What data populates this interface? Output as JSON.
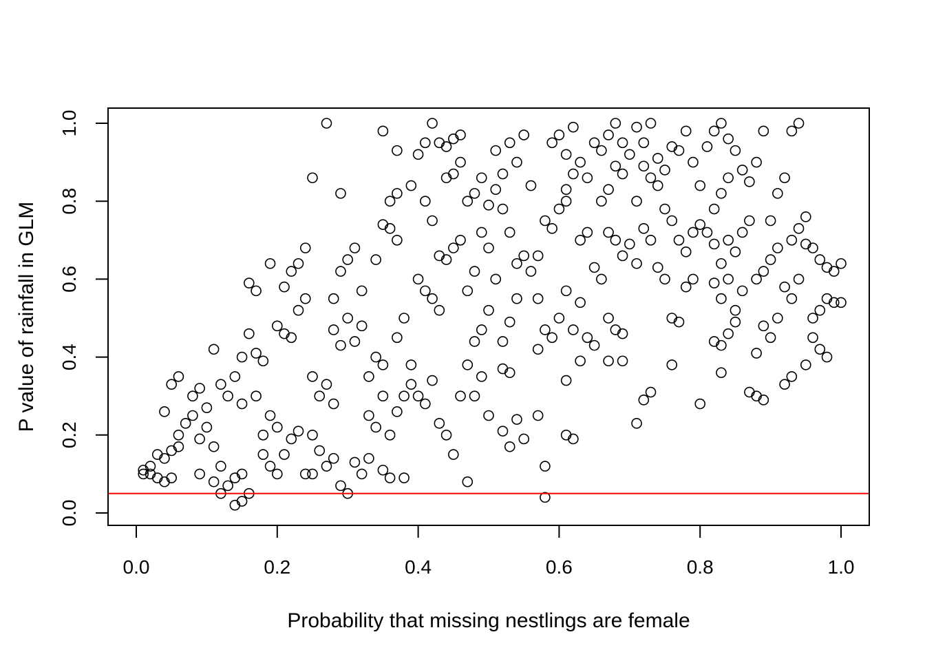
{
  "chart_data": {
    "type": "scatter",
    "title": "",
    "xlabel": "Probability that missing nestlings are female",
    "ylabel": "P value of rainfall in GLM",
    "xlim": [
      0.0,
      1.0
    ],
    "ylim": [
      0.0,
      1.0
    ],
    "xticks": [
      "0.0",
      "0.2",
      "0.4",
      "0.6",
      "0.8",
      "1.0"
    ],
    "yticks": [
      "0.0",
      "0.2",
      "0.4",
      "0.6",
      "0.8",
      "1.0"
    ],
    "grid": false,
    "legend": "none",
    "marker": "open-circle",
    "point_color": "#000000",
    "reference_line": {
      "y": 0.05,
      "color": "#ff0000"
    },
    "points": [
      [
        0.01,
        0.11
      ],
      [
        0.02,
        0.1
      ],
      [
        0.03,
        0.09
      ],
      [
        0.01,
        0.1
      ],
      [
        0.02,
        0.12
      ],
      [
        0.04,
        0.14
      ],
      [
        0.05,
        0.16
      ],
      [
        0.03,
        0.15
      ],
      [
        0.06,
        0.17
      ],
      [
        0.04,
        0.08
      ],
      [
        0.05,
        0.09
      ],
      [
        0.06,
        0.2
      ],
      [
        0.07,
        0.23
      ],
      [
        0.04,
        0.26
      ],
      [
        0.05,
        0.33
      ],
      [
        0.06,
        0.35
      ],
      [
        0.08,
        0.25
      ],
      [
        0.08,
        0.3
      ],
      [
        0.09,
        0.32
      ],
      [
        0.1,
        0.27
      ],
      [
        0.09,
        0.19
      ],
      [
        0.1,
        0.22
      ],
      [
        0.11,
        0.17
      ],
      [
        0.12,
        0.12
      ],
      [
        0.09,
        0.1
      ],
      [
        0.11,
        0.08
      ],
      [
        0.12,
        0.05
      ],
      [
        0.13,
        0.07
      ],
      [
        0.14,
        0.02
      ],
      [
        0.15,
        0.03
      ],
      [
        0.14,
        0.09
      ],
      [
        0.15,
        0.1
      ],
      [
        0.16,
        0.05
      ],
      [
        0.12,
        0.33
      ],
      [
        0.13,
        0.3
      ],
      [
        0.11,
        0.42
      ],
      [
        0.14,
        0.35
      ],
      [
        0.15,
        0.4
      ],
      [
        0.16,
        0.59
      ],
      [
        0.17,
        0.41
      ],
      [
        0.16,
        0.46
      ],
      [
        0.18,
        0.39
      ],
      [
        0.17,
        0.57
      ],
      [
        0.15,
        0.28
      ],
      [
        0.17,
        0.3
      ],
      [
        0.18,
        0.2
      ],
      [
        0.19,
        0.25
      ],
      [
        0.2,
        0.22
      ],
      [
        0.18,
        0.15
      ],
      [
        0.19,
        0.12
      ],
      [
        0.2,
        0.1
      ],
      [
        0.21,
        0.15
      ],
      [
        0.22,
        0.19
      ],
      [
        0.23,
        0.21
      ],
      [
        0.2,
        0.48
      ],
      [
        0.21,
        0.46
      ],
      [
        0.22,
        0.45
      ],
      [
        0.23,
        0.52
      ],
      [
        0.24,
        0.55
      ],
      [
        0.22,
        0.62
      ],
      [
        0.23,
        0.64
      ],
      [
        0.24,
        0.68
      ],
      [
        0.19,
        0.64
      ],
      [
        0.21,
        0.58
      ],
      [
        0.25,
        0.86
      ],
      [
        0.27,
        1.0
      ],
      [
        0.29,
        0.82
      ],
      [
        0.25,
        0.35
      ],
      [
        0.26,
        0.3
      ],
      [
        0.27,
        0.33
      ],
      [
        0.28,
        0.28
      ],
      [
        0.25,
        0.2
      ],
      [
        0.26,
        0.16
      ],
      [
        0.27,
        0.12
      ],
      [
        0.28,
        0.14
      ],
      [
        0.29,
        0.07
      ],
      [
        0.3,
        0.05
      ],
      [
        0.24,
        0.1
      ],
      [
        0.25,
        0.1
      ],
      [
        0.28,
        0.47
      ],
      [
        0.29,
        0.43
      ],
      [
        0.3,
        0.5
      ],
      [
        0.31,
        0.44
      ],
      [
        0.32,
        0.48
      ],
      [
        0.28,
        0.55
      ],
      [
        0.29,
        0.62
      ],
      [
        0.3,
        0.65
      ],
      [
        0.31,
        0.68
      ],
      [
        0.32,
        0.57
      ],
      [
        0.33,
        0.35
      ],
      [
        0.34,
        0.4
      ],
      [
        0.35,
        0.38
      ],
      [
        0.33,
        0.25
      ],
      [
        0.34,
        0.22
      ],
      [
        0.35,
        0.3
      ],
      [
        0.36,
        0.2
      ],
      [
        0.31,
        0.13
      ],
      [
        0.32,
        0.1
      ],
      [
        0.33,
        0.14
      ],
      [
        0.35,
        0.11
      ],
      [
        0.36,
        0.09
      ],
      [
        0.38,
        0.09
      ],
      [
        0.37,
        0.26
      ],
      [
        0.38,
        0.3
      ],
      [
        0.39,
        0.33
      ],
      [
        0.37,
        0.45
      ],
      [
        0.38,
        0.5
      ],
      [
        0.39,
        0.38
      ],
      [
        0.34,
        0.65
      ],
      [
        0.35,
        0.74
      ],
      [
        0.36,
        0.73
      ],
      [
        0.37,
        0.7
      ],
      [
        0.35,
        0.98
      ],
      [
        0.36,
        0.8
      ],
      [
        0.37,
        0.82
      ],
      [
        0.37,
        0.93
      ],
      [
        0.39,
        0.84
      ],
      [
        0.4,
        0.92
      ],
      [
        0.41,
        0.95
      ],
      [
        0.42,
        1.0
      ],
      [
        0.43,
        0.95
      ],
      [
        0.44,
        0.94
      ],
      [
        0.45,
        0.96
      ],
      [
        0.46,
        0.9
      ],
      [
        0.44,
        0.86
      ],
      [
        0.45,
        0.87
      ],
      [
        0.46,
        0.97
      ],
      [
        0.41,
        0.8
      ],
      [
        0.42,
        0.75
      ],
      [
        0.43,
        0.66
      ],
      [
        0.4,
        0.6
      ],
      [
        0.41,
        0.57
      ],
      [
        0.42,
        0.55
      ],
      [
        0.43,
        0.52
      ],
      [
        0.44,
        0.65
      ],
      [
        0.45,
        0.68
      ],
      [
        0.46,
        0.7
      ],
      [
        0.4,
        0.3
      ],
      [
        0.41,
        0.28
      ],
      [
        0.42,
        0.34
      ],
      [
        0.43,
        0.23
      ],
      [
        0.44,
        0.2
      ],
      [
        0.45,
        0.15
      ],
      [
        0.46,
        0.3
      ],
      [
        0.47,
        0.08
      ],
      [
        0.47,
        0.38
      ],
      [
        0.48,
        0.44
      ],
      [
        0.49,
        0.47
      ],
      [
        0.5,
        0.52
      ],
      [
        0.48,
        0.3
      ],
      [
        0.49,
        0.35
      ],
      [
        0.5,
        0.25
      ],
      [
        0.47,
        0.57
      ],
      [
        0.48,
        0.62
      ],
      [
        0.49,
        0.72
      ],
      [
        0.5,
        0.68
      ],
      [
        0.47,
        0.8
      ],
      [
        0.48,
        0.82
      ],
      [
        0.49,
        0.86
      ],
      [
        0.5,
        0.79
      ],
      [
        0.51,
        0.93
      ],
      [
        0.52,
        0.87
      ],
      [
        0.53,
        0.95
      ],
      [
        0.54,
        0.9
      ],
      [
        0.55,
        0.97
      ],
      [
        0.56,
        0.84
      ],
      [
        0.51,
        0.83
      ],
      [
        0.52,
        0.78
      ],
      [
        0.53,
        0.72
      ],
      [
        0.54,
        0.64
      ],
      [
        0.55,
        0.66
      ],
      [
        0.56,
        0.62
      ],
      [
        0.57,
        0.55
      ],
      [
        0.51,
        0.6
      ],
      [
        0.52,
        0.44
      ],
      [
        0.53,
        0.49
      ],
      [
        0.54,
        0.55
      ],
      [
        0.52,
        0.37
      ],
      [
        0.53,
        0.36
      ],
      [
        0.54,
        0.24
      ],
      [
        0.55,
        0.19
      ],
      [
        0.52,
        0.21
      ],
      [
        0.53,
        0.17
      ],
      [
        0.57,
        0.25
      ],
      [
        0.58,
        0.12
      ],
      [
        0.58,
        0.04
      ],
      [
        0.57,
        0.42
      ],
      [
        0.58,
        0.47
      ],
      [
        0.59,
        0.45
      ],
      [
        0.6,
        0.5
      ],
      [
        0.57,
        0.66
      ],
      [
        0.58,
        0.75
      ],
      [
        0.59,
        0.73
      ],
      [
        0.6,
        0.78
      ],
      [
        0.61,
        0.8
      ],
      [
        0.59,
        0.95
      ],
      [
        0.6,
        0.97
      ],
      [
        0.61,
        0.92
      ],
      [
        0.62,
        0.99
      ],
      [
        0.63,
        0.9
      ],
      [
        0.64,
        0.86
      ],
      [
        0.61,
        0.83
      ],
      [
        0.62,
        0.87
      ],
      [
        0.63,
        0.7
      ],
      [
        0.64,
        0.72
      ],
      [
        0.65,
        0.63
      ],
      [
        0.61,
        0.57
      ],
      [
        0.62,
        0.47
      ],
      [
        0.63,
        0.54
      ],
      [
        0.64,
        0.45
      ],
      [
        0.65,
        0.43
      ],
      [
        0.61,
        0.34
      ],
      [
        0.61,
        0.2
      ],
      [
        0.62,
        0.19
      ],
      [
        0.63,
        0.39
      ],
      [
        0.65,
        0.95
      ],
      [
        0.66,
        0.93
      ],
      [
        0.67,
        0.97
      ],
      [
        0.68,
        1.0
      ],
      [
        0.69,
        0.95
      ],
      [
        0.7,
        0.92
      ],
      [
        0.67,
        0.83
      ],
      [
        0.68,
        0.89
      ],
      [
        0.69,
        0.87
      ],
      [
        0.66,
        0.8
      ],
      [
        0.67,
        0.72
      ],
      [
        0.68,
        0.7
      ],
      [
        0.69,
        0.66
      ],
      [
        0.7,
        0.69
      ],
      [
        0.66,
        0.6
      ],
      [
        0.67,
        0.5
      ],
      [
        0.68,
        0.47
      ],
      [
        0.69,
        0.46
      ],
      [
        0.67,
        0.39
      ],
      [
        0.69,
        0.39
      ],
      [
        0.71,
        0.64
      ],
      [
        0.72,
        0.73
      ],
      [
        0.73,
        0.7
      ],
      [
        0.74,
        0.63
      ],
      [
        0.71,
        0.8
      ],
      [
        0.72,
        0.89
      ],
      [
        0.73,
        0.86
      ],
      [
        0.74,
        0.84
      ],
      [
        0.71,
        0.99
      ],
      [
        0.72,
        0.95
      ],
      [
        0.73,
        1.0
      ],
      [
        0.74,
        0.91
      ],
      [
        0.75,
        0.88
      ],
      [
        0.76,
        0.94
      ],
      [
        0.77,
        0.93
      ],
      [
        0.78,
        0.98
      ],
      [
        0.79,
        0.9
      ],
      [
        0.75,
        0.78
      ],
      [
        0.76,
        0.75
      ],
      [
        0.77,
        0.7
      ],
      [
        0.78,
        0.67
      ],
      [
        0.79,
        0.72
      ],
      [
        0.75,
        0.6
      ],
      [
        0.76,
        0.5
      ],
      [
        0.77,
        0.49
      ],
      [
        0.78,
        0.58
      ],
      [
        0.79,
        0.6
      ],
      [
        0.72,
        0.29
      ],
      [
        0.73,
        0.31
      ],
      [
        0.71,
        0.23
      ],
      [
        0.76,
        0.38
      ],
      [
        0.8,
        0.28
      ],
      [
        0.8,
        0.74
      ],
      [
        0.81,
        0.72
      ],
      [
        0.82,
        0.78
      ],
      [
        0.83,
        0.82
      ],
      [
        0.84,
        0.86
      ],
      [
        0.8,
        0.84
      ],
      [
        0.81,
        0.94
      ],
      [
        0.82,
        0.98
      ],
      [
        0.83,
        1.0
      ],
      [
        0.84,
        0.96
      ],
      [
        0.85,
        0.93
      ],
      [
        0.86,
        0.88
      ],
      [
        0.87,
        0.85
      ],
      [
        0.88,
        0.9
      ],
      [
        0.89,
        0.98
      ],
      [
        0.82,
        0.69
      ],
      [
        0.83,
        0.64
      ],
      [
        0.84,
        0.7
      ],
      [
        0.85,
        0.67
      ],
      [
        0.86,
        0.72
      ],
      [
        0.87,
        0.75
      ],
      [
        0.82,
        0.59
      ],
      [
        0.83,
        0.55
      ],
      [
        0.84,
        0.6
      ],
      [
        0.85,
        0.52
      ],
      [
        0.86,
        0.57
      ],
      [
        0.82,
        0.44
      ],
      [
        0.83,
        0.43
      ],
      [
        0.84,
        0.46
      ],
      [
        0.85,
        0.49
      ],
      [
        0.83,
        0.36
      ],
      [
        0.87,
        0.31
      ],
      [
        0.88,
        0.3
      ],
      [
        0.89,
        0.29
      ],
      [
        0.88,
        0.41
      ],
      [
        0.89,
        0.48
      ],
      [
        0.9,
        0.45
      ],
      [
        0.91,
        0.5
      ],
      [
        0.88,
        0.6
      ],
      [
        0.89,
        0.62
      ],
      [
        0.9,
        0.65
      ],
      [
        0.91,
        0.68
      ],
      [
        0.92,
        0.58
      ],
      [
        0.93,
        0.55
      ],
      [
        0.94,
        0.6
      ],
      [
        0.9,
        0.75
      ],
      [
        0.91,
        0.82
      ],
      [
        0.92,
        0.86
      ],
      [
        0.93,
        0.7
      ],
      [
        0.94,
        0.73
      ],
      [
        0.95,
        0.76
      ],
      [
        0.93,
        0.98
      ],
      [
        0.94,
        1.0
      ],
      [
        0.95,
        0.69
      ],
      [
        0.96,
        0.68
      ],
      [
        0.97,
        0.65
      ],
      [
        0.98,
        0.63
      ],
      [
        0.99,
        0.62
      ],
      [
        1.0,
        0.64
      ],
      [
        0.96,
        0.5
      ],
      [
        0.97,
        0.52
      ],
      [
        0.98,
        0.55
      ],
      [
        0.99,
        0.54
      ],
      [
        1.0,
        0.54
      ],
      [
        0.96,
        0.45
      ],
      [
        0.97,
        0.42
      ],
      [
        0.98,
        0.4
      ],
      [
        0.95,
        0.38
      ],
      [
        0.93,
        0.35
      ],
      [
        0.92,
        0.33
      ]
    ]
  }
}
